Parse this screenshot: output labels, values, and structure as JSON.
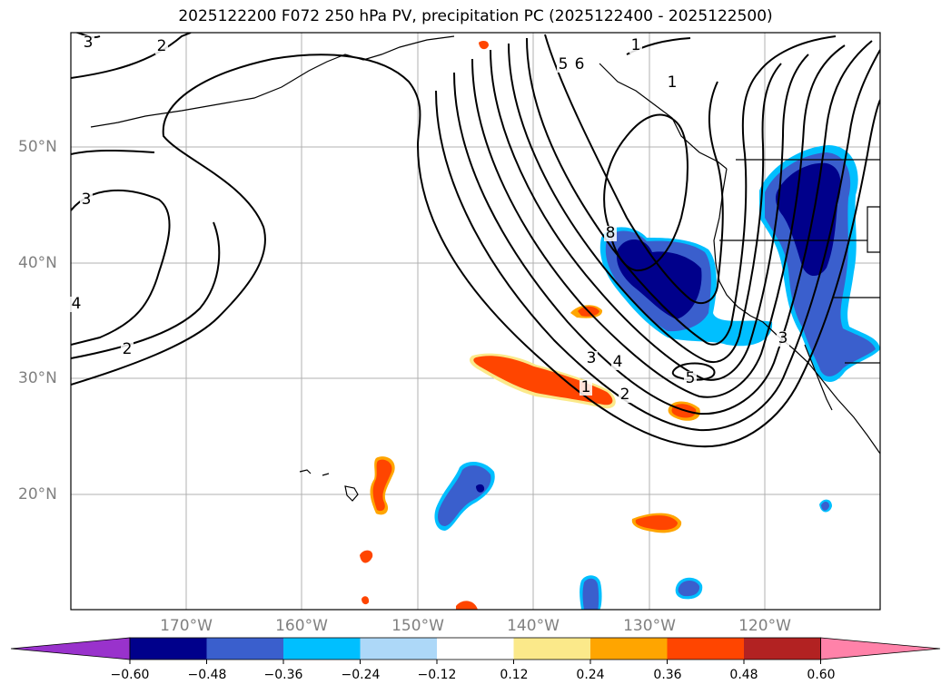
{
  "title": "2025122200 F072 250 hPa PV, precipitation PC (2025122400 - 2025122500)",
  "latitude_labels": [
    "50°N",
    "40°N",
    "30°N",
    "20°N"
  ],
  "longitude_labels": [
    "170°W",
    "160°W",
    "150°W",
    "140°W",
    "130°W",
    "120°W"
  ],
  "contour_labels": [
    "3",
    "2",
    "3",
    "2",
    "4",
    "1",
    "5",
    "6",
    "8",
    "3",
    "4",
    "1",
    "2",
    "5",
    "3",
    "1"
  ],
  "colorbar": {
    "tick_labels": [
      "−0.60",
      "−0.48",
      "−0.36",
      "−0.24",
      "−0.12",
      "0.12",
      "0.24",
      "0.36",
      "0.48",
      "0.60"
    ],
    "colors": [
      "#9932cc",
      "#00008b",
      "#3a5fcd",
      "#00bfff",
      "#add8f8",
      "#ffffff",
      "#fbe98a",
      "#ffa500",
      "#ff4500",
      "#b22222",
      "#ff82a9"
    ]
  },
  "colors": {
    "negative_dark": "#00008b",
    "negative_mid": "#3a5fcd",
    "negative_light": "#00bfff",
    "positive_mid": "#ff4500",
    "positive_light": "#ffa500",
    "positive_edge": "#fbe98a",
    "gridline": "#b0b0b0"
  }
}
